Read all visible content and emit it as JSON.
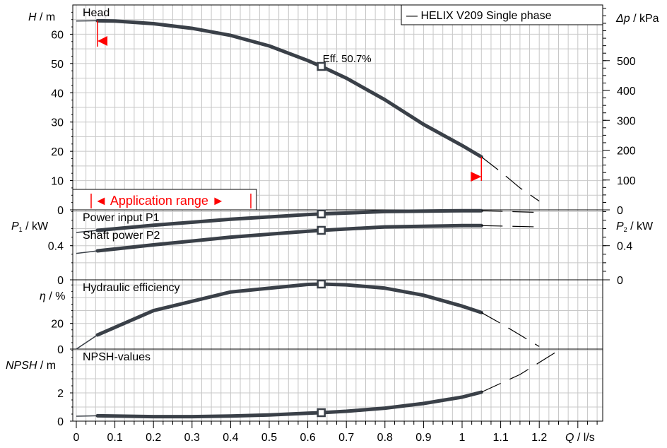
{
  "chart_data": {
    "type": "line",
    "x_axis": {
      "label_var": "Q",
      "label_unit": " / l/s",
      "range": [
        0,
        1.35
      ],
      "ticks": [
        "0",
        "0.1",
        "0.2",
        "0.3",
        "0.4",
        "0.5",
        "0.6",
        "0.7",
        "0.8",
        "0.9",
        "1",
        "1.1",
        "1.2"
      ]
    },
    "legend": "— HELIX V209 Single phase",
    "panels": [
      {
        "id": "head",
        "title": "Head",
        "ylabel_var": "H",
        "ylabel_unit": " / m",
        "ylim": [
          0,
          70
        ],
        "yticks": [
          "0",
          "10",
          "20",
          "30",
          "40",
          "50",
          "60"
        ],
        "right_label_var": "Δp",
        "right_label_unit": " / kPa",
        "right_ylim": [
          0,
          686.5
        ],
        "right_ticks": [
          "0",
          "100",
          "200",
          "300",
          "400",
          "500"
        ],
        "curve": {
          "x": [
            0,
            0.055,
            0.1,
            0.2,
            0.3,
            0.4,
            0.5,
            0.6,
            0.635,
            0.7,
            0.8,
            0.9,
            1.0,
            1.05
          ],
          "y": [
            64.5,
            64.6,
            64.5,
            63.6,
            62.0,
            59.6,
            56.0,
            51.0,
            49.0,
            45.0,
            37.6,
            29.2,
            22.0,
            18.1
          ]
        },
        "extension": {
          "x": [
            1.05,
            1.1,
            1.15,
            1.2
          ],
          "y": [
            18.1,
            13.0,
            7.5,
            3.0
          ]
        },
        "marker": {
          "x": 0.635,
          "y": 49.0
        },
        "annotation": "Eff.  50.7%",
        "app_range": {
          "label": "◄ Application range ►",
          "x": [
            0.05,
            0.46
          ]
        },
        "limits": {
          "x": [
            0.055,
            1.05
          ]
        }
      },
      {
        "id": "power",
        "title": "Power input P1",
        "title2": "Shaft power P2",
        "ylabel_var": "P",
        "ylabel_sub": "1",
        "ylabel_unit": " / kW",
        "right_label_var": "P",
        "right_label_sub": "2",
        "right_label_unit": " / kW",
        "ylim": [
          0,
          0.82
        ],
        "yticks": [
          "0",
          "0.4"
        ],
        "right_ticks": [
          "0",
          "0.4"
        ],
        "series": [
          {
            "name": "Power input P1",
            "x": [
              0,
              0.055,
              0.2,
              0.4,
              0.6,
              0.635,
              0.8,
              1.0,
              1.05
            ],
            "y": [
              0.555,
              0.58,
              0.64,
              0.71,
              0.765,
              0.772,
              0.8,
              0.81,
              0.81
            ],
            "marker": {
              "x": 0.635,
              "y": 0.772
            }
          },
          {
            "name": "Shaft power P2",
            "x": [
              0,
              0.055,
              0.2,
              0.4,
              0.6,
              0.635,
              0.8,
              1.0,
              1.05
            ],
            "y": [
              0.31,
              0.34,
              0.41,
              0.5,
              0.57,
              0.58,
              0.62,
              0.635,
              0.635
            ],
            "marker": {
              "x": 0.635,
              "y": 0.58
            }
          }
        ],
        "extensions": [
          {
            "x": [
              1.05,
              1.2
            ],
            "y": [
              0.81,
              0.79
            ]
          },
          {
            "x": [
              1.05,
              1.2
            ],
            "y": [
              0.635,
              0.62
            ]
          }
        ]
      },
      {
        "id": "eff",
        "title": "Hydraulic efficiency",
        "ylabel_var": "η",
        "ylabel_unit": " / %",
        "ylim": [
          0,
          54
        ],
        "yticks": [
          "0",
          "20"
        ],
        "curve": {
          "x": [
            0,
            0.055,
            0.2,
            0.4,
            0.6,
            0.635,
            0.7,
            0.8,
            0.9,
            1.0,
            1.05
          ],
          "y": [
            0,
            11.0,
            30.0,
            44.5,
            50.4,
            50.7,
            50.1,
            47.5,
            42.0,
            33.5,
            28.5
          ]
        },
        "extension": {
          "x": [
            1.05,
            1.1,
            1.15,
            1.2
          ],
          "y": [
            28.5,
            20.0,
            11.0,
            2.0
          ]
        },
        "marker": {
          "x": 0.635,
          "y": 50.7
        }
      },
      {
        "id": "npsh",
        "title": "NPSH-values",
        "ylabel_var": "NPSH",
        "ylabel_unit": " / m",
        "ylim": [
          0,
          5.1
        ],
        "yticks": [
          "0",
          "2"
        ],
        "curve": {
          "x": [
            0,
            0.055,
            0.2,
            0.3,
            0.4,
            0.5,
            0.6,
            0.635,
            0.7,
            0.8,
            0.9,
            1.0,
            1.05
          ],
          "y": [
            0.35,
            0.38,
            0.32,
            0.32,
            0.36,
            0.44,
            0.56,
            0.6,
            0.7,
            0.92,
            1.25,
            1.7,
            2.05
          ]
        },
        "extension": {
          "x": [
            1.05,
            1.15,
            1.25
          ],
          "y": [
            2.05,
            3.3,
            5.0
          ]
        },
        "marker": {
          "x": 0.635,
          "y": 0.6
        }
      }
    ]
  }
}
